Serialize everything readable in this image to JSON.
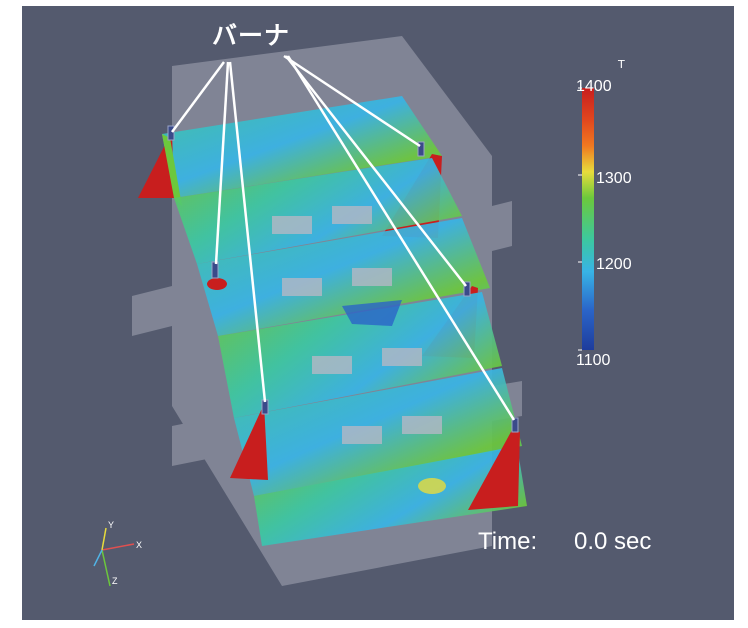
{
  "callout": {
    "label": "バーナ"
  },
  "colorbar": {
    "title": "T",
    "ticks": [
      "1400",
      "1300",
      "1200",
      "1100"
    ],
    "range": [
      1100,
      1400
    ],
    "colors": [
      "#c81e1e",
      "#f07820",
      "#e8dc3c",
      "#6cc83c",
      "#3cc8a0",
      "#38b4e6",
      "#2a64c8",
      "#1e3c9c"
    ]
  },
  "time": {
    "label": "Time:",
    "value": "0.0 sec"
  },
  "axes": {
    "x": "X",
    "y": "Y",
    "z": "Z"
  },
  "colors": {
    "background": "#545a6e",
    "callout_line": "#ffffff",
    "housing": "#b4b8c4"
  }
}
